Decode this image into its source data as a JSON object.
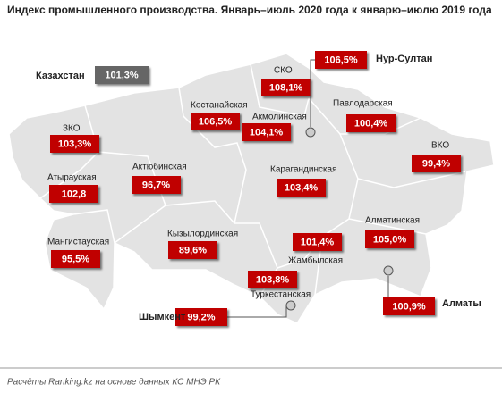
{
  "title": "Индекс промышленного производства. Январь–июль 2020 года к январю–июлю 2019 года",
  "national": {
    "name": "Казахстан",
    "value": "101,3%"
  },
  "regions": [
    {
      "name": "СКО",
      "value": "108,1%"
    },
    {
      "name": "Костанайская",
      "value": "106,5%"
    },
    {
      "name": "Акмолинская",
      "value": "104,1%"
    },
    {
      "name": "Павлодарская",
      "value": "100,4%"
    },
    {
      "name": "ЗКО",
      "value": "103,3%"
    },
    {
      "name": "ВКО",
      "value": "99,4%"
    },
    {
      "name": "Актюбинская",
      "value": "96,7%"
    },
    {
      "name": "Карагандинская",
      "value": "103,4%"
    },
    {
      "name": "Атырауская",
      "value": "102,8"
    },
    {
      "name": "Мангистауская",
      "value": "95,5%"
    },
    {
      "name": "Кызылординская",
      "value": "89,6%"
    },
    {
      "name": "Алматинская",
      "value": "105,0%"
    },
    {
      "name": "Жамбылская",
      "value": "101,4%"
    },
    {
      "name": "Туркестанская",
      "value": "103,8%"
    }
  ],
  "cities": [
    {
      "name": "Нур-Султан",
      "value": "106,5%"
    },
    {
      "name": "Шымкент",
      "value": "99,2%"
    },
    {
      "name": "Алматы",
      "value": "100,9%"
    }
  ],
  "footer": "Расчёты Ranking.kz на основе данных КС МНЭ РК"
}
